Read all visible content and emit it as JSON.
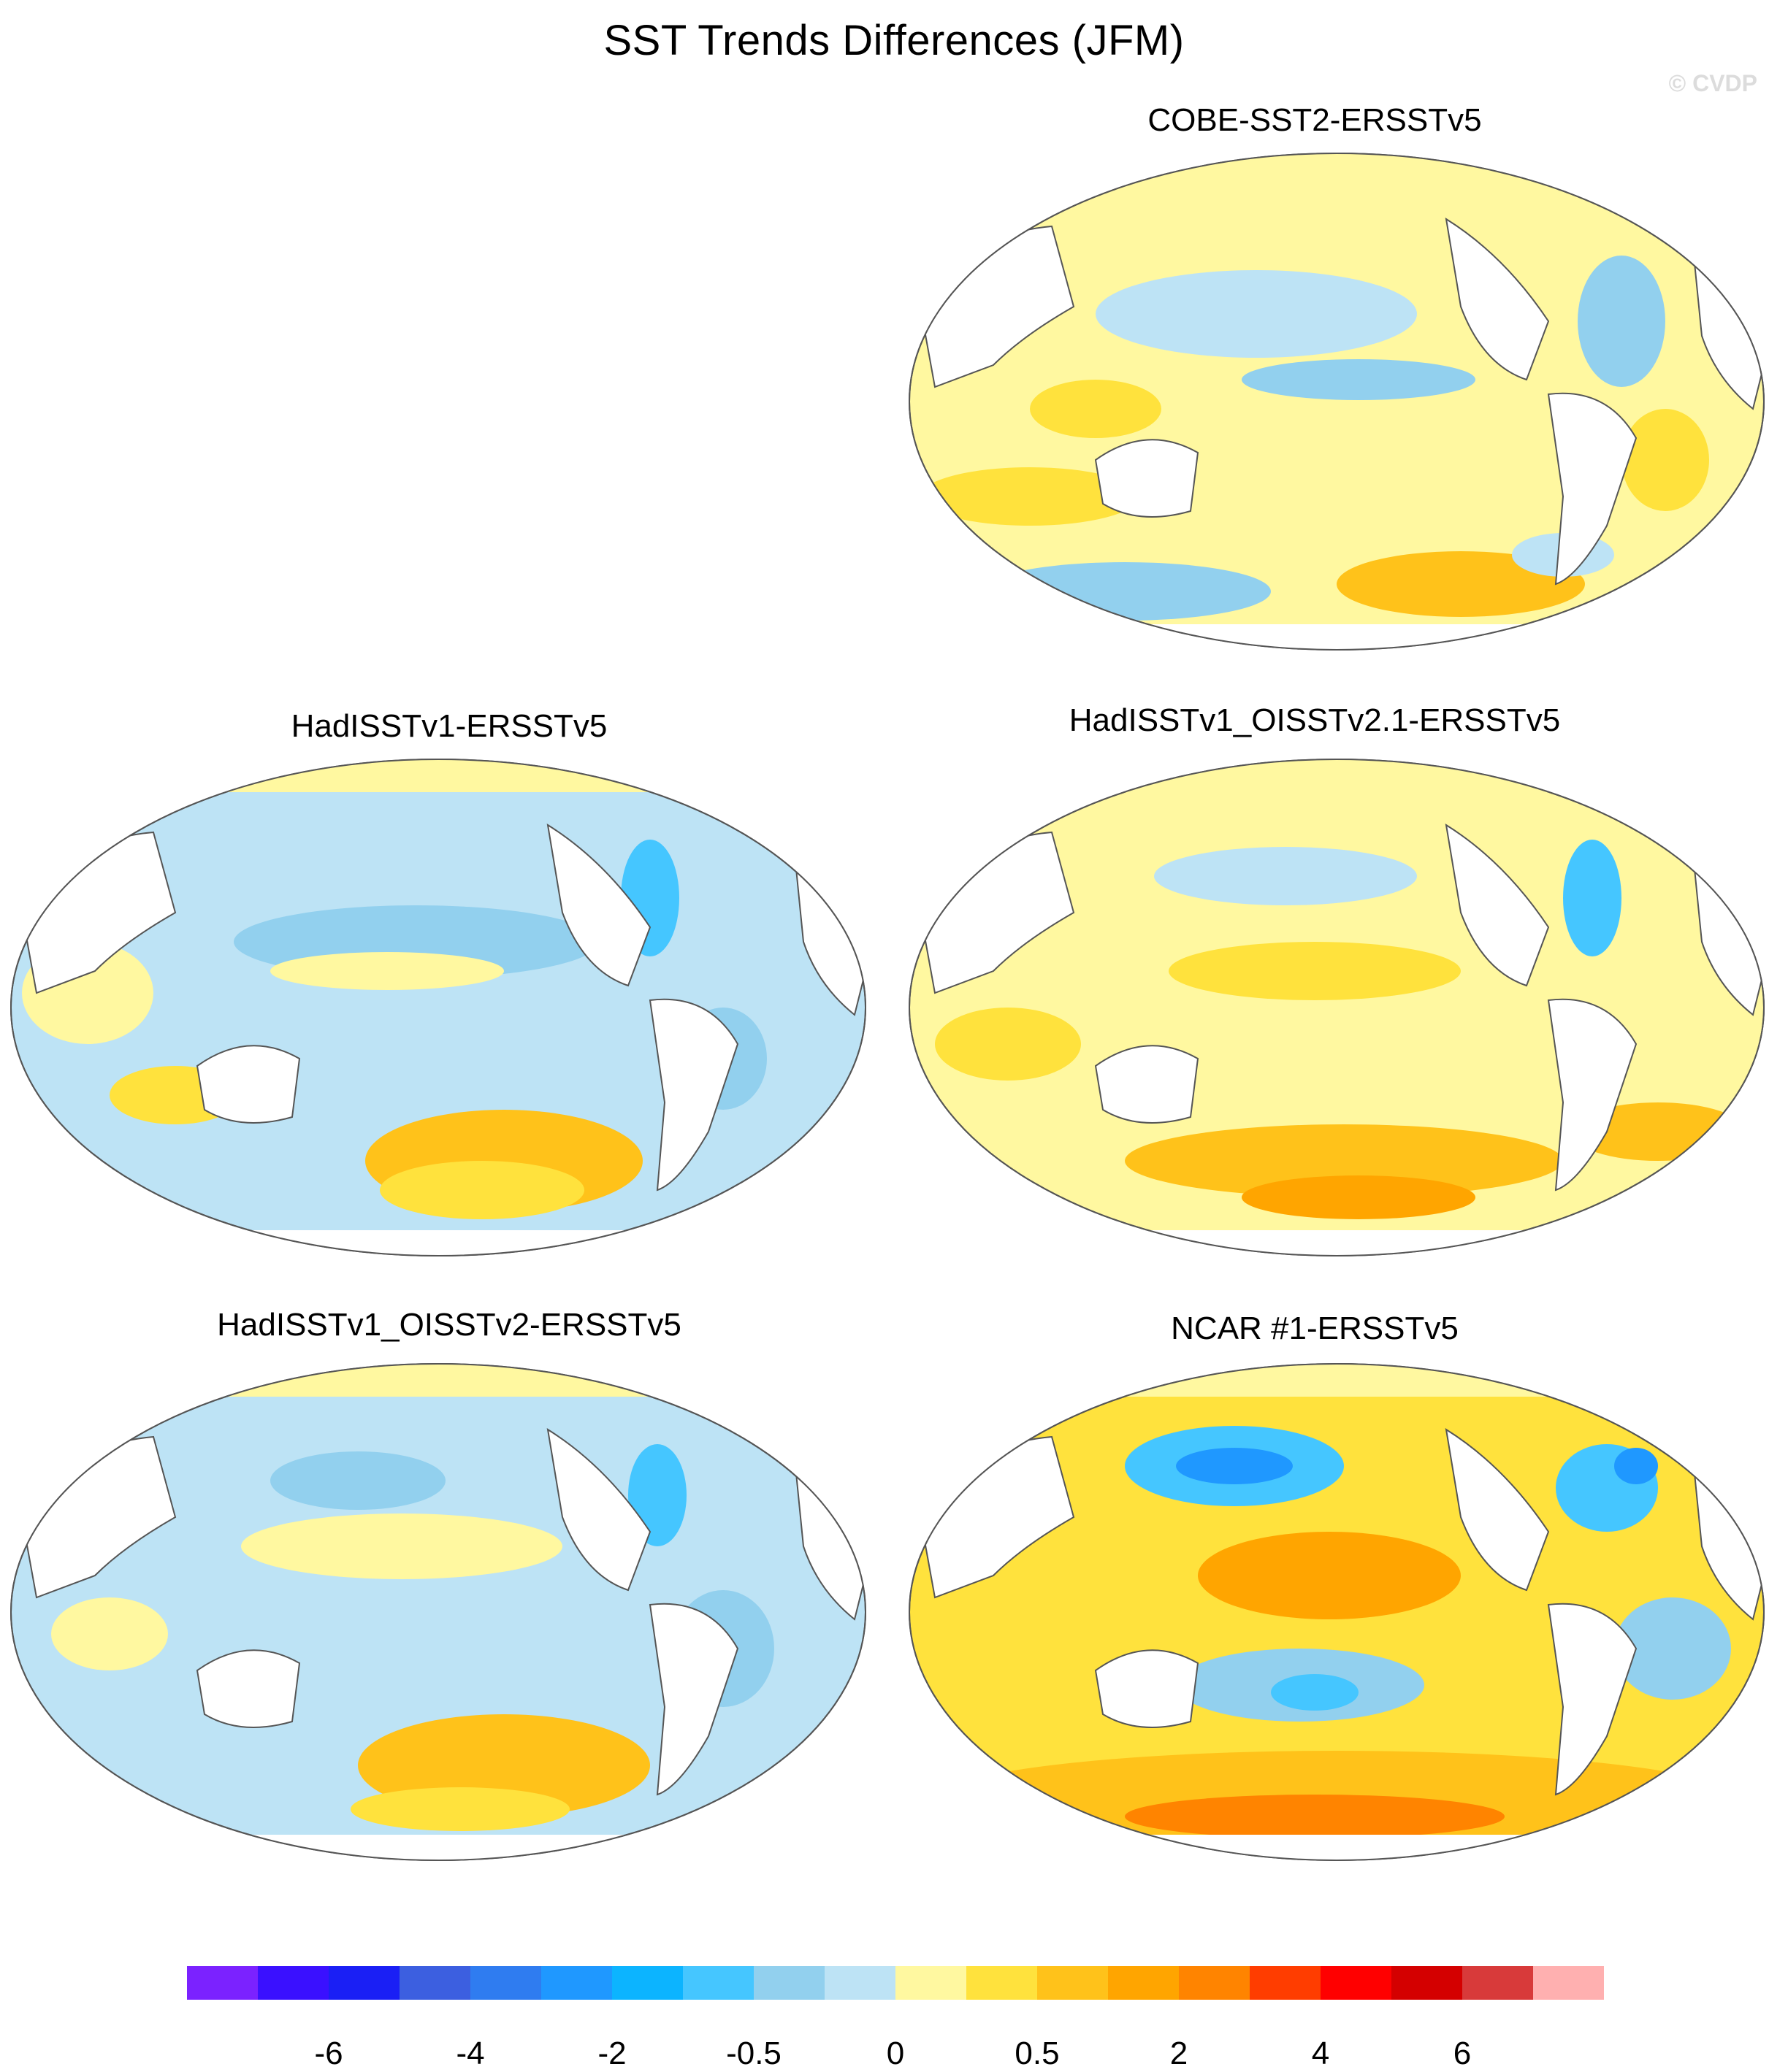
{
  "figure": {
    "title": "SST Trends Differences (JFM)",
    "watermark": "© CVDP"
  },
  "panels": [
    {
      "title": "COBE-SST2-ERSSTv5"
    },
    {
      "title": "HadISSTv1-ERSSTv5"
    },
    {
      "title": "HadISSTv1_OISSTv2.1-ERSSTv5"
    },
    {
      "title": "HadISSTv1_OISSTv2-ERSSTv5"
    },
    {
      "title": "NCAR #1-ERSSTv5"
    }
  ],
  "colorbar": {
    "colors": [
      "#7b22ff",
      "#3a10ff",
      "#1a1ff5",
      "#3c5fe0",
      "#2f7cf0",
      "#1f98ff",
      "#0cb4ff",
      "#45c6ff",
      "#92d0ee",
      "#bde3f5",
      "#fff8a0",
      "#ffe23d",
      "#ffc21a",
      "#ffa500",
      "#ff8400",
      "#ff3d00",
      "#ff0000",
      "#d40000",
      "#d83a3a",
      "#ffb0b0"
    ],
    "labels": [
      "-6",
      "-4",
      "-2",
      "-0.5",
      "0",
      "0.5",
      "2",
      "4",
      "6"
    ]
  }
}
